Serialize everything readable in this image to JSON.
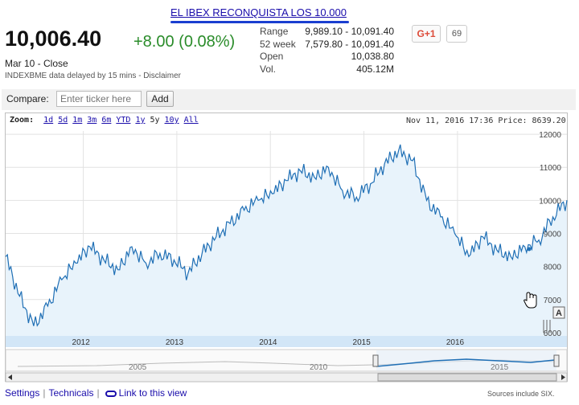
{
  "headline": "EL IBEX RECONQUISTA LOS 10.000",
  "quote": {
    "price": "10,006.40",
    "change": "+8.00 (0.08%)",
    "close_label": "Mar 10 - Close",
    "delay_label": "INDEXBME data delayed by 15 mins - Disclaimer"
  },
  "stats": [
    {
      "label": "Range",
      "value": "9,989.10 - 10,091.40"
    },
    {
      "label": "52 week",
      "value": "7,579.80 - 10,091.40"
    },
    {
      "label": "Open",
      "value": "10,038.80"
    },
    {
      "label": "Vol.",
      "value": "405.12M"
    }
  ],
  "share": {
    "gplus_label": "G+1",
    "count": "69"
  },
  "compare": {
    "label": "Compare:",
    "placeholder": "Enter ticker here",
    "add_label": "Add"
  },
  "zoom": {
    "label": "Zoom:",
    "options": [
      "1d",
      "5d",
      "1m",
      "3m",
      "6m",
      "YTD",
      "1y",
      "5y",
      "10y",
      "All"
    ],
    "selected": "5y"
  },
  "readout": "Nov 11, 2016 17:36 Price: 8639.20",
  "footer": {
    "settings": "Settings",
    "technicals": "Technicals",
    "link": "Link to this view",
    "sources": "Sources include SIX."
  },
  "colors": {
    "line": "#1f6fb5",
    "fill": "#e8f3fb",
    "axis_band": "#d2e6f7",
    "positive": "#2a8c2a",
    "link": "#1a0dab"
  },
  "icons": {
    "link": "link-icon",
    "hand_cursor": "hand-cursor-icon",
    "annotation": "annotation-flag-icon"
  },
  "chart_data": {
    "type": "area",
    "x_ticks": [
      "2012",
      "2013",
      "2014",
      "2015",
      "2016"
    ],
    "y_ticks": [
      6000,
      7000,
      8000,
      9000,
      10000,
      11000,
      12000
    ],
    "ylim": [
      5900,
      12100
    ],
    "grid": true,
    "series": [
      {
        "x": [
          2011.2,
          2011.35,
          2011.5,
          2011.65,
          2011.8,
          2011.95,
          2012.1,
          2012.25,
          2012.4,
          2012.55,
          2012.7,
          2012.85,
          2013.0,
          2013.15,
          2013.3,
          2013.45,
          2013.6,
          2013.75,
          2013.9,
          2014.05,
          2014.2,
          2014.35,
          2014.5,
          2014.65,
          2014.8,
          2014.95,
          2015.1,
          2015.25,
          2015.4,
          2015.55,
          2015.7,
          2015.85,
          2016.0,
          2016.15,
          2016.3,
          2016.45,
          2016.6,
          2016.75,
          2016.9,
          2017.05,
          2017.2
        ],
        "values": [
          8300,
          7100,
          6200,
          6800,
          7600,
          8100,
          8600,
          8200,
          7900,
          8600,
          8100,
          8400,
          8200,
          7800,
          8400,
          8900,
          9300,
          9700,
          10000,
          10200,
          10600,
          10900,
          10700,
          11000,
          10300,
          10100,
          10500,
          11100,
          11500,
          11200,
          10000,
          9500,
          9000,
          8300,
          8900,
          8500,
          8300,
          8600,
          8800,
          9500,
          10006
        ]
      }
    ]
  },
  "navigator": {
    "x_ticks": [
      "2005",
      "2010",
      "2015"
    ]
  }
}
